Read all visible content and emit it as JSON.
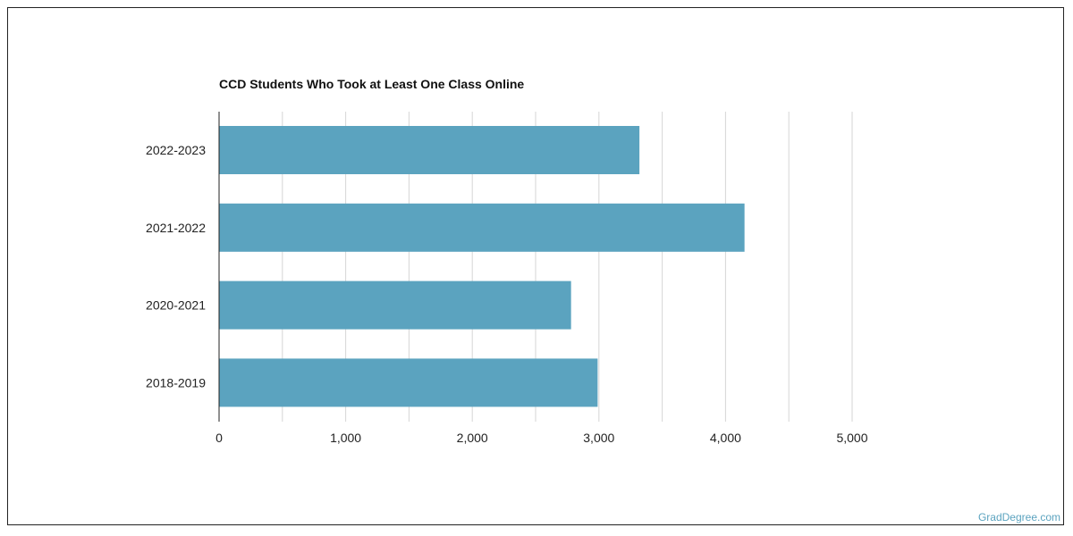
{
  "chart_data": {
    "type": "bar",
    "orientation": "horizontal",
    "title": "CCD Students Who Took at Least One Class Online",
    "categories": [
      "2022-2023",
      "2021-2022",
      "2020-2021",
      "2018-2019"
    ],
    "values": [
      3320,
      4150,
      2780,
      2990
    ],
    "xlim": [
      0,
      5000
    ],
    "xticks": [
      0,
      1000,
      2000,
      3000,
      4000,
      5000
    ],
    "xtick_labels": [
      "0",
      "1,000",
      "2,000",
      "3,000",
      "4,000",
      "5,000"
    ],
    "grid": true,
    "bar_color": "#5ba3bf"
  },
  "watermark": "GradDegree.com"
}
